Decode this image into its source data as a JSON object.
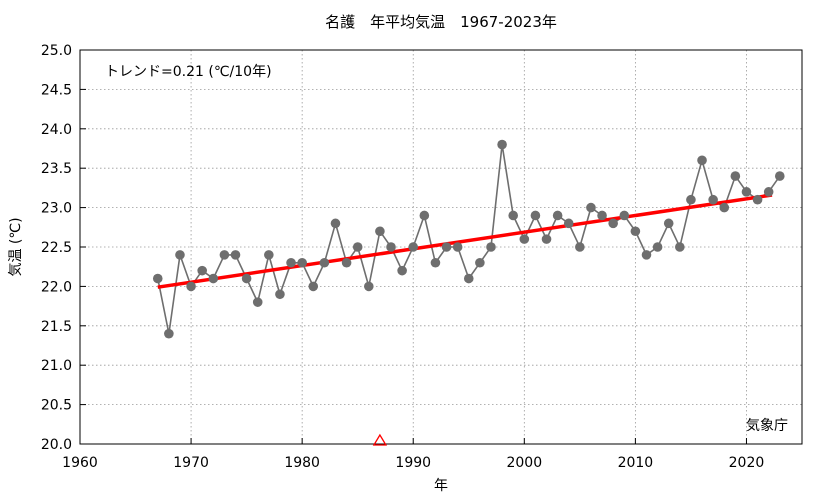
{
  "chart_data": {
    "type": "line",
    "title": "名護　年平均気温　1967-2023年",
    "xlabel": "年",
    "ylabel": "気温 (℃)",
    "trend_label": "トレンド=0.21 (℃/10年)",
    "source_label": "気象庁",
    "xlim": [
      1960,
      2025
    ],
    "ylim": [
      20.0,
      25.0
    ],
    "x_ticks": [
      1960,
      1970,
      1980,
      1990,
      2000,
      2010,
      2020
    ],
    "y_ticks": [
      20.0,
      20.5,
      21.0,
      21.5,
      22.0,
      22.5,
      23.0,
      23.5,
      24.0,
      24.5,
      25.0
    ],
    "x_tick_labels": [
      "1960",
      "1970",
      "1980",
      "1990",
      "2000",
      "2010",
      "2020"
    ],
    "y_tick_labels": [
      "20.0",
      "20.5",
      "21.0",
      "21.5",
      "22.0",
      "22.5",
      "23.0",
      "23.5",
      "24.0",
      "24.5",
      "25.0"
    ],
    "grid": true,
    "series": [
      {
        "color": "#6e6e6e",
        "x": [
          1967,
          1968,
          1969,
          1970,
          1971,
          1972,
          1973,
          1974,
          1975,
          1976,
          1977,
          1978,
          1979,
          1980,
          1981,
          1982,
          1983,
          1984,
          1985,
          1986,
          1987,
          1988,
          1989,
          1990,
          1991,
          1992,
          1993,
          1994,
          1995,
          1996,
          1997,
          1998,
          1999,
          2000,
          2001,
          2002,
          2003,
          2004,
          2005,
          2006,
          2007,
          2008,
          2009,
          2010,
          2011,
          2012,
          2013,
          2014,
          2015,
          2016,
          2017,
          2018,
          2019,
          2020,
          2021,
          2022,
          2023
        ],
        "values": [
          22.1,
          21.4,
          22.4,
          22.0,
          22.2,
          22.1,
          22.4,
          22.4,
          22.1,
          21.8,
          22.4,
          21.9,
          22.3,
          22.3,
          22.0,
          22.3,
          22.8,
          22.3,
          22.5,
          22.0,
          22.7,
          22.5,
          22.2,
          22.5,
          22.9,
          22.3,
          22.5,
          22.5,
          22.1,
          22.3,
          22.5,
          23.8,
          22.9,
          22.6,
          22.9,
          22.6,
          22.9,
          22.8,
          22.5,
          23.0,
          22.9,
          22.8,
          22.9,
          22.7,
          22.4,
          22.5,
          22.8,
          22.5,
          23.1,
          23.6,
          23.1,
          23.0,
          23.4,
          23.2,
          23.1,
          23.2,
          23.4
        ]
      }
    ],
    "trend": {
      "color": "#ff0000",
      "x": [
        1967,
        2022.3
      ],
      "values": [
        21.99,
        23.16
      ]
    },
    "marker": {
      "type": "triangle",
      "color": "#ff0000",
      "x": 1987,
      "y": 20.0
    }
  }
}
